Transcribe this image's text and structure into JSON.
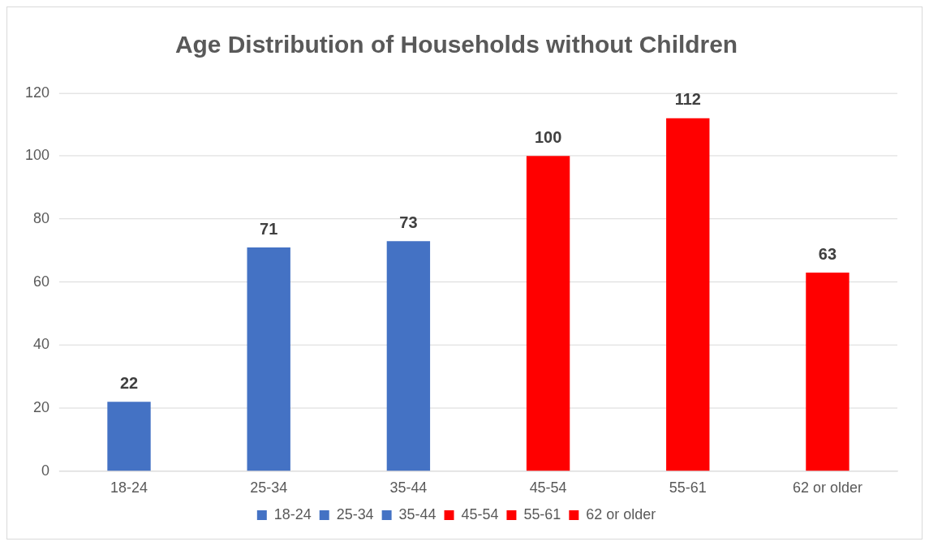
{
  "chart_data": {
    "type": "bar",
    "title": "Age Distribution of Households without Children",
    "categories": [
      "18-24",
      "25-34",
      "35-44",
      "45-54",
      "55-61",
      "62 or older"
    ],
    "series": [
      {
        "name": "18-24",
        "color": "#4472c4",
        "values": [
          22,
          null,
          null,
          null,
          null,
          null
        ]
      },
      {
        "name": "25-34",
        "color": "#4472c4",
        "values": [
          null,
          71,
          null,
          null,
          null,
          null
        ]
      },
      {
        "name": "35-44",
        "color": "#4472c4",
        "values": [
          null,
          null,
          73,
          null,
          null,
          null
        ]
      },
      {
        "name": "45-54",
        "color": "#ff0000",
        "values": [
          null,
          null,
          null,
          100,
          null,
          null
        ]
      },
      {
        "name": "55-61",
        "color": "#ff0000",
        "values": [
          null,
          null,
          null,
          null,
          112,
          null
        ]
      },
      {
        "name": "62 or older",
        "color": "#ff0000",
        "values": [
          null,
          null,
          null,
          null,
          null,
          63
        ]
      }
    ],
    "stacked": true,
    "ylim": [
      0,
      120
    ],
    "yticks": [
      0,
      20,
      40,
      60,
      80,
      100,
      120
    ],
    "grid": "y",
    "legend": "bottom",
    "data_labels": true
  }
}
